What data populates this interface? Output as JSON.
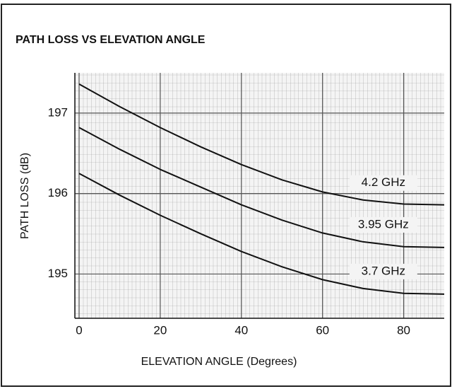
{
  "chart_data": {
    "type": "line",
    "title": "PATH LOSS VS ELEVATION ANGLE",
    "xlabel": "ELEVATION ANGLE (Degrees)",
    "ylabel": "PATH LOSS (dB)",
    "x": [
      0,
      10,
      20,
      30,
      40,
      50,
      60,
      70,
      80,
      90
    ],
    "series": [
      {
        "name": "4.2 GHz",
        "color": "#111111",
        "values": [
          197.36,
          197.08,
          196.82,
          196.58,
          196.36,
          196.17,
          196.02,
          195.92,
          195.87,
          195.86
        ]
      },
      {
        "name": "3.95 GHz",
        "color": "#111111",
        "values": [
          196.82,
          196.55,
          196.3,
          196.08,
          195.86,
          195.67,
          195.51,
          195.4,
          195.34,
          195.33
        ]
      },
      {
        "name": "3.7 GHz",
        "color": "#111111",
        "values": [
          196.25,
          195.98,
          195.73,
          195.5,
          195.28,
          195.09,
          194.93,
          194.82,
          194.76,
          194.75
        ]
      }
    ],
    "xlim": [
      0,
      90
    ],
    "xticks": [
      0,
      20,
      40,
      60,
      80
    ],
    "ylim": [
      194.45,
      197.5
    ],
    "yticks": [
      195,
      196,
      197
    ],
    "grid": true
  }
}
